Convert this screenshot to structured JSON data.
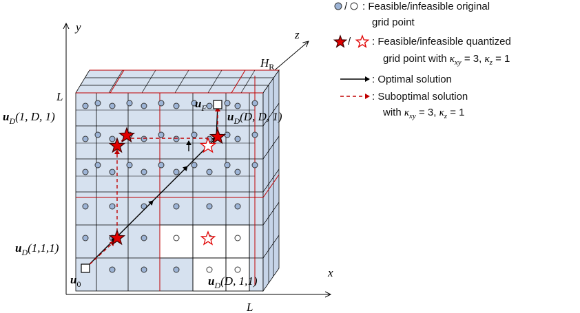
{
  "axes": {
    "x": "x",
    "y": "y",
    "z": "z",
    "length_left": "L",
    "length_bottom": "L",
    "height": "H",
    "height_sub": "R"
  },
  "points": {
    "start": "u",
    "start_sub": "0",
    "final": "u",
    "final_sub": "F",
    "corner_1D1": {
      "u": "u",
      "sub": "D",
      "args": "(1, D, 1)"
    },
    "corner_111": {
      "u": "u",
      "sub": "D",
      "args": "(1,1,1)"
    },
    "corner_DD1": {
      "u": "u",
      "sub": "D",
      "args": "(D, D, 1)"
    },
    "corner_D11": {
      "u": "u",
      "sub": "D",
      "args": "(D, 1,1)"
    }
  },
  "legend": {
    "items": [
      {
        "symbol": "circles",
        "line1": ": Feasible/infeasible original",
        "line2": "grid point"
      },
      {
        "symbol": "stars",
        "line1": ": Feasible/infeasible quantized",
        "line2": "grid point with κxy = 3, κz = 1"
      },
      {
        "symbol": "solid-arrow",
        "line1": ": Optimal solution"
      },
      {
        "symbol": "dashed-arrow",
        "line1": ": Suboptimal solution",
        "line2": "with κxy = 3, κz = 1"
      }
    ],
    "separator": "/"
  },
  "colors": {
    "feasible_fill": "#d6e1ef",
    "infeasible_fill": "#ffffff",
    "grid_line": "#000000",
    "red_line": "#c00000",
    "star_red": "#e00000"
  }
}
